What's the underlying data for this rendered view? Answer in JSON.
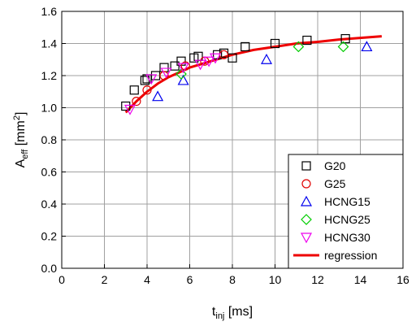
{
  "chart_data": {
    "type": "scatter",
    "xlabel": {
      "base": "t",
      "sub": "inj",
      "unit": " [ms]"
    },
    "ylabel": {
      "base": "A",
      "sub": "eff",
      "unit_pre": " [mm",
      "sup": "2",
      "unit_post": "]"
    },
    "xlim": [
      0,
      16
    ],
    "ylim": [
      0.0,
      1.6
    ],
    "x_ticks": [
      "0",
      "2",
      "4",
      "6",
      "8",
      "10",
      "12",
      "14",
      "16"
    ],
    "y_ticks": [
      "0.0",
      "0.2",
      "0.4",
      "0.6",
      "0.8",
      "1.0",
      "1.2",
      "1.4",
      "1.6"
    ],
    "grid": true,
    "legend_position": "bottom-right",
    "series": [
      {
        "name": "G20",
        "marker": "square",
        "color": "#000000",
        "points": [
          [
            3.0,
            1.01
          ],
          [
            3.4,
            1.11
          ],
          [
            3.9,
            1.17
          ],
          [
            4.0,
            1.18
          ],
          [
            4.4,
            1.2
          ],
          [
            4.8,
            1.25
          ],
          [
            5.3,
            1.26
          ],
          [
            5.6,
            1.29
          ],
          [
            6.2,
            1.31
          ],
          [
            6.4,
            1.32
          ],
          [
            7.3,
            1.33
          ],
          [
            7.6,
            1.34
          ],
          [
            8.0,
            1.31
          ],
          [
            8.6,
            1.38
          ],
          [
            10.0,
            1.4
          ],
          [
            11.5,
            1.42
          ],
          [
            13.3,
            1.43
          ]
        ]
      },
      {
        "name": "G25",
        "marker": "circle",
        "color": "#e00000",
        "points": [
          [
            3.5,
            1.04
          ],
          [
            4.0,
            1.11
          ],
          [
            4.8,
            1.2
          ],
          [
            5.8,
            1.26
          ],
          [
            6.7,
            1.29
          ],
          [
            7.6,
            1.33
          ]
        ]
      },
      {
        "name": "HCNG15",
        "marker": "triangle-up",
        "color": "#0000ee",
        "points": [
          [
            4.5,
            1.07
          ],
          [
            5.7,
            1.17
          ],
          [
            9.6,
            1.3
          ],
          [
            14.3,
            1.38
          ]
        ]
      },
      {
        "name": "HCNG25",
        "marker": "diamond",
        "color": "#00cc00",
        "points": [
          [
            5.6,
            1.21
          ],
          [
            11.1,
            1.38
          ],
          [
            13.2,
            1.38
          ]
        ]
      },
      {
        "name": "HCNG30",
        "marker": "triangle-down",
        "color": "#ee00ee",
        "points": [
          [
            3.2,
            0.99
          ],
          [
            4.2,
            1.18
          ],
          [
            4.9,
            1.22
          ],
          [
            5.7,
            1.25
          ],
          [
            6.5,
            1.27
          ],
          [
            6.9,
            1.29
          ],
          [
            7.2,
            1.31
          ]
        ]
      }
    ],
    "regression": {
      "name": "regression",
      "color": "#ee0000",
      "points": [
        [
          3.0,
          0.97
        ],
        [
          3.5,
          1.04
        ],
        [
          4.0,
          1.1
        ],
        [
          4.5,
          1.15
        ],
        [
          5.0,
          1.19
        ],
        [
          5.5,
          1.22
        ],
        [
          6.0,
          1.25
        ],
        [
          6.5,
          1.27
        ],
        [
          7.0,
          1.29
        ],
        [
          8.0,
          1.33
        ],
        [
          9.0,
          1.36
        ],
        [
          10.0,
          1.38
        ],
        [
          11.0,
          1.4
        ],
        [
          12.0,
          1.41
        ],
        [
          13.0,
          1.425
        ],
        [
          14.0,
          1.435
        ],
        [
          15.0,
          1.445
        ]
      ]
    }
  }
}
